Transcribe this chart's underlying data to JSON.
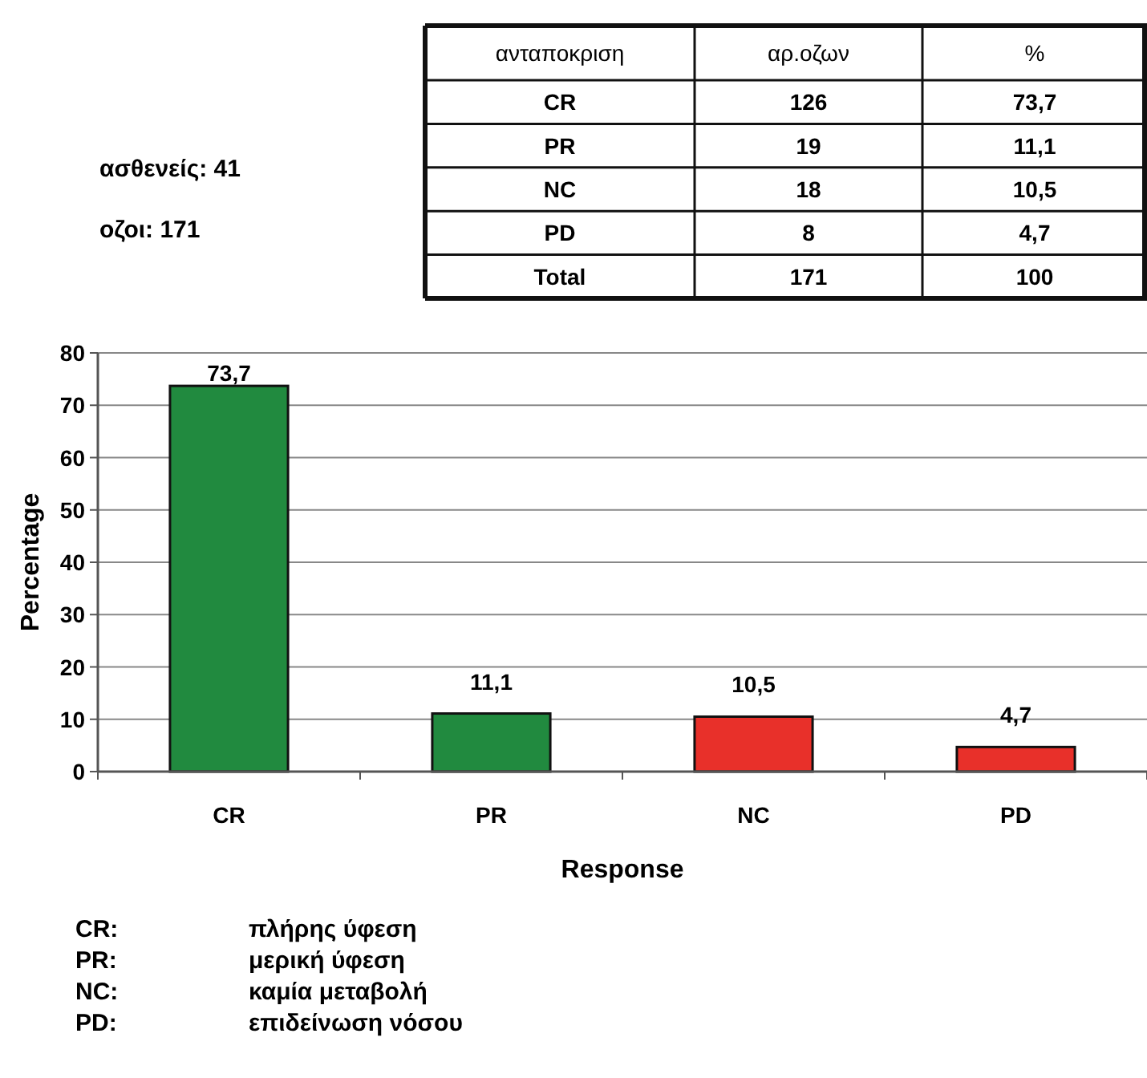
{
  "chart_data": {
    "type": "bar",
    "xlabel": "Response",
    "ylabel": "Percentage",
    "categories": [
      "CR",
      "PR",
      "NC",
      "PD"
    ],
    "values": [
      73.7,
      11.1,
      10.5,
      4.7
    ],
    "colors": [
      "#218a3f",
      "#218a3f",
      "#e8302a",
      "#e8302a"
    ],
    "value_labels": [
      "73,7",
      "11,1",
      "10,5",
      "4,7"
    ],
    "ylim": [
      0,
      80
    ],
    "yticks": [
      0,
      10,
      20,
      30,
      40,
      50,
      60,
      70,
      80
    ],
    "grid": "y",
    "annotations": [
      "ασθενείς: 41",
      "οζοι: 171",
      "ανταποκριση",
      "αρ.οζων",
      "%",
      "CR",
      "126",
      "73,7",
      "PR",
      "19",
      "11,1",
      "NC",
      "18",
      "10,5",
      "PD",
      "8",
      "4,7",
      "Total",
      "171",
      "100",
      "CR:",
      "πλήρης ύφεση",
      "PR:",
      "μερική ύφεση",
      "NC:",
      "καμία μεταβολή",
      "PD:",
      "επιδείνωση νόσου"
    ]
  }
}
